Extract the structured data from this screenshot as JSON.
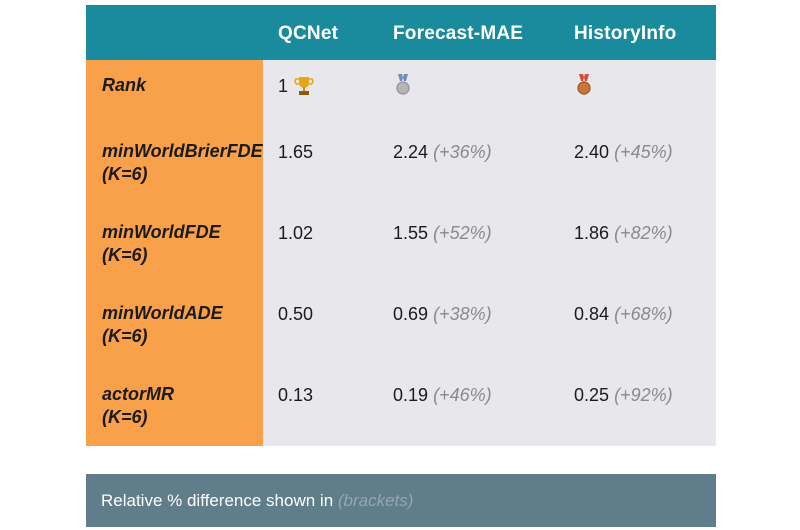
{
  "table": {
    "columns": [
      "QCNet",
      "Forecast-MAE",
      "HistoryInfo"
    ],
    "rank": {
      "label": "Rank",
      "first": "1"
    },
    "rows": [
      {
        "label": [
          "minWorldBrierFDE",
          "(K=6)"
        ],
        "cells": [
          {
            "value": "1.65"
          },
          {
            "value": "2.24",
            "diff": "(+36%)"
          },
          {
            "value": "2.40",
            "diff": "(+45%)"
          }
        ]
      },
      {
        "label": [
          "minWorldFDE",
          "(K=6)"
        ],
        "cells": [
          {
            "value": "1.02"
          },
          {
            "value": "1.55",
            "diff": "(+52%)"
          },
          {
            "value": "1.86",
            "diff": "(+82%)"
          }
        ]
      },
      {
        "label": [
          "minWorldADE",
          "(K=6)"
        ],
        "cells": [
          {
            "value": "0.50"
          },
          {
            "value": "0.69",
            "diff": "(+38%)"
          },
          {
            "value": "0.84",
            "diff": "(+68%)"
          }
        ]
      },
      {
        "label": [
          "actorMR",
          "(K=6)"
        ],
        "cells": [
          {
            "value": "0.13"
          },
          {
            "value": "0.19",
            "diff": "(+46%)"
          },
          {
            "value": "0.25",
            "diff": "(+92%)"
          }
        ]
      }
    ]
  },
  "footer": {
    "text": "Relative % difference shown in ",
    "emphasis": "(brackets)"
  }
}
